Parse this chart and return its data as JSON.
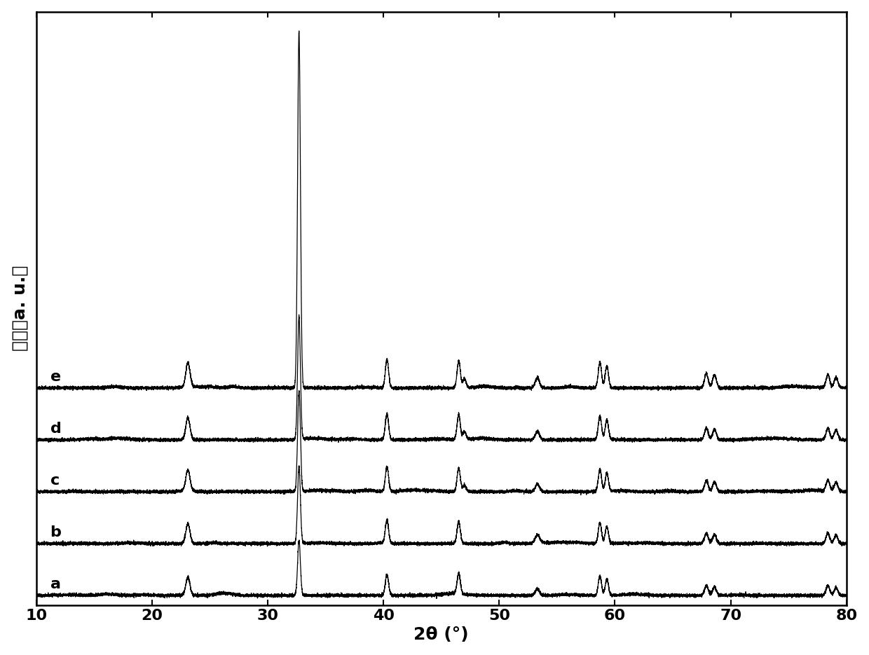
{
  "xlabel": "2θ (°)",
  "ylabel": "强度（a. u.）",
  "xlim": [
    10,
    80
  ],
  "ylim": [
    -0.15,
    9.0
  ],
  "xticks": [
    10,
    20,
    30,
    40,
    50,
    60,
    70,
    80
  ],
  "series_labels": [
    "a",
    "b",
    "c",
    "d",
    "e"
  ],
  "offsets": [
    0.0,
    0.8,
    1.6,
    2.4,
    3.2
  ],
  "peak_positions": [
    23.1,
    32.7,
    33.2,
    40.3,
    46.5,
    47.0,
    53.3,
    58.7,
    59.3,
    67.9,
    68.6,
    78.4,
    79.1
  ],
  "peak_widths": [
    0.18,
    0.12,
    0.12,
    0.14,
    0.14,
    0.14,
    0.18,
    0.14,
    0.14,
    0.16,
    0.16,
    0.16,
    0.16
  ],
  "peak_heights_a": [
    0.28,
    0.85,
    0.0,
    0.32,
    0.32,
    0.0,
    0.1,
    0.3,
    0.25,
    0.15,
    0.13,
    0.15,
    0.12
  ],
  "peak_heights_b": [
    0.3,
    1.2,
    0.0,
    0.36,
    0.34,
    0.0,
    0.11,
    0.32,
    0.26,
    0.16,
    0.14,
    0.16,
    0.13
  ],
  "peak_heights_c": [
    0.32,
    1.55,
    0.0,
    0.38,
    0.36,
    0.1,
    0.12,
    0.34,
    0.28,
    0.17,
    0.15,
    0.17,
    0.14
  ],
  "peak_heights_d": [
    0.34,
    1.9,
    0.0,
    0.4,
    0.38,
    0.12,
    0.13,
    0.36,
    0.3,
    0.18,
    0.16,
    0.18,
    0.15
  ],
  "peak_heights_e": [
    0.38,
    5.5,
    0.0,
    0.44,
    0.42,
    0.14,
    0.15,
    0.4,
    0.34,
    0.22,
    0.2,
    0.2,
    0.16
  ],
  "noise_level": 0.012,
  "background_color": "#ffffff",
  "line_color": "#000000",
  "font_size_label": 18,
  "font_size_tick": 16,
  "line_width": 0.9
}
